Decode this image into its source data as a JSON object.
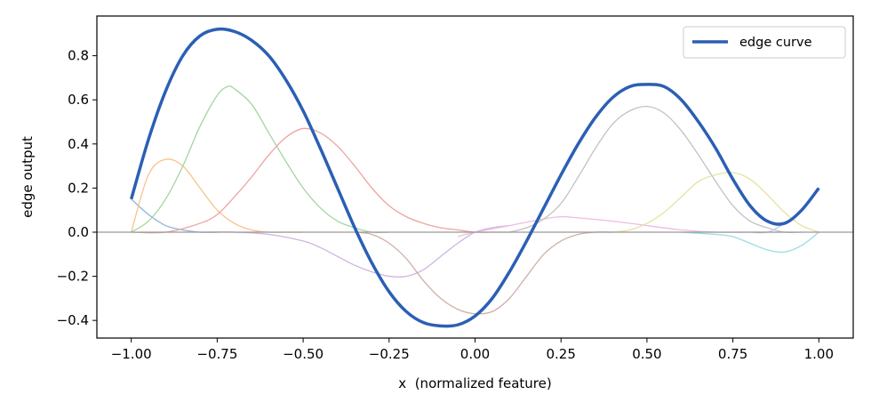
{
  "chart_data": {
    "type": "line",
    "xlabel": "x  (normalized feature)",
    "ylabel": "edge output",
    "xlim": [
      -1.1,
      1.1
    ],
    "ylim": [
      -0.48,
      0.98
    ],
    "x_ticks": [
      -1.0,
      -0.75,
      -0.5,
      -0.25,
      0.0,
      0.25,
      0.5,
      0.75,
      1.0
    ],
    "x_tick_labels": [
      "−1.00",
      "−0.75",
      "−0.50",
      "−0.25",
      "0.00",
      "0.25",
      "0.50",
      "0.75",
      "1.00"
    ],
    "y_ticks": [
      -0.4,
      -0.2,
      0.0,
      0.2,
      0.4,
      0.6,
      0.8
    ],
    "y_tick_labels": [
      "−0.4",
      "−0.2",
      "0.0",
      "0.2",
      "0.4",
      "0.6",
      "0.8"
    ],
    "grid": false,
    "zero_line": true,
    "legend_position": "top-right",
    "main_series": {
      "name": "edge curve",
      "color": "#2b5fb4",
      "x": [
        -1.0,
        -0.95,
        -0.9,
        -0.85,
        -0.8,
        -0.75,
        -0.7,
        -0.65,
        -0.6,
        -0.55,
        -0.5,
        -0.45,
        -0.4,
        -0.35,
        -0.3,
        -0.25,
        -0.2,
        -0.15,
        -0.1,
        -0.05,
        0.0,
        0.05,
        0.1,
        0.15,
        0.2,
        0.25,
        0.3,
        0.35,
        0.4,
        0.45,
        0.5,
        0.55,
        0.6,
        0.65,
        0.7,
        0.75,
        0.8,
        0.85,
        0.9,
        0.95,
        1.0
      ],
      "y": [
        0.15,
        0.42,
        0.64,
        0.8,
        0.89,
        0.92,
        0.91,
        0.87,
        0.8,
        0.69,
        0.55,
        0.38,
        0.2,
        0.02,
        -0.14,
        -0.27,
        -0.36,
        -0.41,
        -0.425,
        -0.42,
        -0.38,
        -0.3,
        -0.18,
        -0.04,
        0.11,
        0.26,
        0.4,
        0.52,
        0.61,
        0.66,
        0.67,
        0.66,
        0.6,
        0.5,
        0.38,
        0.24,
        0.12,
        0.05,
        0.04,
        0.1,
        0.2
      ]
    },
    "components": [
      {
        "color": "#8fb4d9",
        "x": [
          -1.0,
          -0.95,
          -0.9,
          -0.85,
          -0.8,
          -0.75
        ],
        "y": [
          0.15,
          0.08,
          0.03,
          0.01,
          0.0,
          0.0
        ]
      },
      {
        "color": "#f6c48a",
        "x": [
          -1.0,
          -0.95,
          -0.9,
          -0.85,
          -0.8,
          -0.75,
          -0.7,
          -0.65,
          -0.6,
          -0.55,
          -0.5
        ],
        "y": [
          0.0,
          0.26,
          0.33,
          0.3,
          0.2,
          0.1,
          0.04,
          0.01,
          0.0,
          0.0,
          0.0
        ]
      },
      {
        "color": "#a5d4a0",
        "x": [
          -1.0,
          -0.95,
          -0.9,
          -0.85,
          -0.8,
          -0.75,
          -0.72,
          -0.7,
          -0.65,
          -0.6,
          -0.55,
          -0.5,
          -0.45,
          -0.4,
          -0.35,
          -0.3,
          -0.25
        ],
        "y": [
          0.0,
          0.05,
          0.15,
          0.3,
          0.48,
          0.62,
          0.66,
          0.65,
          0.58,
          0.45,
          0.32,
          0.2,
          0.11,
          0.05,
          0.02,
          0.0,
          0.0
        ]
      },
      {
        "color": "#eea3a0",
        "x": [
          -1.0,
          -0.9,
          -0.8,
          -0.75,
          -0.7,
          -0.65,
          -0.6,
          -0.55,
          -0.5,
          -0.45,
          -0.4,
          -0.35,
          -0.3,
          -0.25,
          -0.2,
          -0.15,
          -0.1,
          -0.05,
          0.0,
          0.05,
          0.1
        ],
        "y": [
          0.0,
          0.0,
          0.04,
          0.08,
          0.16,
          0.25,
          0.35,
          0.43,
          0.47,
          0.45,
          0.39,
          0.3,
          0.2,
          0.12,
          0.07,
          0.04,
          0.02,
          0.01,
          0.0,
          0.0,
          0.0
        ]
      },
      {
        "color": "#cdb6e0",
        "x": [
          -0.8,
          -0.7,
          -0.6,
          -0.5,
          -0.45,
          -0.4,
          -0.35,
          -0.3,
          -0.25,
          -0.2,
          -0.15,
          -0.1,
          -0.05,
          0.0,
          0.05,
          0.1
        ],
        "y": [
          0.0,
          0.0,
          -0.01,
          -0.04,
          -0.07,
          -0.11,
          -0.15,
          -0.18,
          -0.2,
          -0.2,
          -0.17,
          -0.11,
          -0.05,
          0.0,
          0.02,
          0.03
        ]
      },
      {
        "color": "#cfb0a8",
        "x": [
          -0.35,
          -0.3,
          -0.25,
          -0.2,
          -0.15,
          -0.1,
          -0.05,
          0.0,
          0.05,
          0.1,
          0.15,
          0.2,
          0.25,
          0.3,
          0.35,
          0.4
        ],
        "y": [
          0.0,
          -0.01,
          -0.05,
          -0.12,
          -0.22,
          -0.3,
          -0.35,
          -0.37,
          -0.36,
          -0.3,
          -0.2,
          -0.1,
          -0.04,
          -0.01,
          0.0,
          0.0
        ]
      },
      {
        "color": "#eebcdf",
        "x": [
          -0.05,
          0.0,
          0.1,
          0.2,
          0.25,
          0.3,
          0.4,
          0.5,
          0.6,
          0.7,
          0.8,
          0.9
        ],
        "y": [
          -0.02,
          0.0,
          0.03,
          0.06,
          0.07,
          0.065,
          0.05,
          0.03,
          0.01,
          0.0,
          0.0,
          0.0
        ]
      },
      {
        "color": "#c2c2c2",
        "x": [
          0.1,
          0.15,
          0.2,
          0.25,
          0.3,
          0.35,
          0.4,
          0.45,
          0.5,
          0.55,
          0.6,
          0.65,
          0.7,
          0.75,
          0.8,
          0.85,
          0.9,
          0.95
        ],
        "y": [
          0.0,
          0.02,
          0.06,
          0.13,
          0.25,
          0.38,
          0.49,
          0.55,
          0.57,
          0.54,
          0.46,
          0.35,
          0.23,
          0.12,
          0.05,
          0.02,
          0.0,
          0.0
        ]
      },
      {
        "color": "#e3e3a0",
        "x": [
          0.4,
          0.45,
          0.5,
          0.55,
          0.6,
          0.65,
          0.7,
          0.75,
          0.8,
          0.85,
          0.9,
          0.95,
          1.0
        ],
        "y": [
          0.0,
          0.01,
          0.04,
          0.09,
          0.16,
          0.23,
          0.26,
          0.27,
          0.24,
          0.17,
          0.09,
          0.03,
          0.0
        ]
      },
      {
        "color": "#9adbe6",
        "x": [
          0.6,
          0.7,
          0.75,
          0.8,
          0.85,
          0.9,
          0.95,
          1.0
        ],
        "y": [
          0.0,
          -0.01,
          -0.02,
          -0.05,
          -0.08,
          -0.09,
          -0.06,
          0.0
        ]
      },
      {
        "color": "#b9cfe6",
        "x": [
          0.8,
          0.85,
          0.9,
          0.95,
          1.0
        ],
        "y": [
          0.0,
          0.0,
          0.04,
          0.1,
          0.2
        ]
      }
    ]
  }
}
